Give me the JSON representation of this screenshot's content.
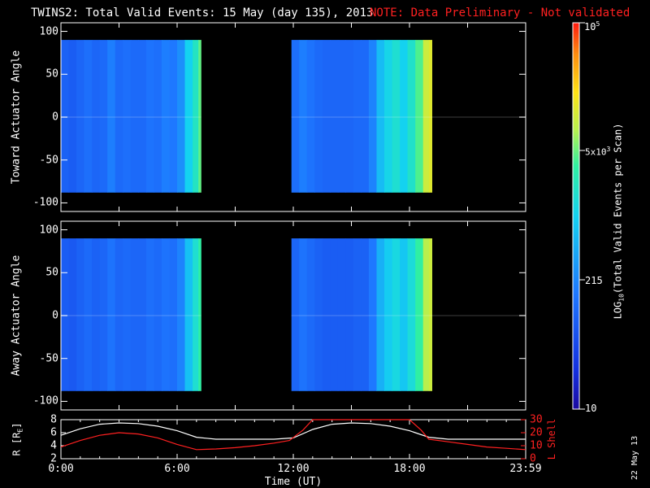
{
  "title": {
    "main": "TWINS2: Total Valid Events: 15 May (day 135), 2013",
    "note": "NOTE: Data Preliminary - Not validated"
  },
  "stamp": "22 May 13",
  "colors": {
    "background": "#000000",
    "axes": "#ffffff",
    "note": "#ff2020",
    "lshell_line": "#ff2020",
    "r_line": "#ffffff"
  },
  "chart_data": [
    {
      "type": "heatmap",
      "panel": "top",
      "ylabel": "Toward Actuator Angle",
      "xlim": [
        0,
        24
      ],
      "ylim": [
        -110,
        110
      ],
      "yticks": [
        100,
        50,
        0,
        -50,
        -100
      ],
      "angle_range": [
        -88,
        90
      ],
      "data_gaps_hours": [
        [
          7.25,
          11.9
        ]
      ],
      "coverage_hours": [
        [
          0,
          7.25
        ],
        [
          11.9,
          19.15
        ]
      ],
      "time_profile_log10_events": [
        [
          0.0,
          1.95
        ],
        [
          0.4,
          1.9
        ],
        [
          0.8,
          2.0
        ],
        [
          1.2,
          2.1
        ],
        [
          1.6,
          2.0
        ],
        [
          2.0,
          2.05
        ],
        [
          2.4,
          2.25
        ],
        [
          2.8,
          2.05
        ],
        [
          3.2,
          2.1
        ],
        [
          3.6,
          2.05
        ],
        [
          4.0,
          2.05
        ],
        [
          4.4,
          2.15
        ],
        [
          4.8,
          2.1
        ],
        [
          5.2,
          2.25
        ],
        [
          5.6,
          2.2
        ],
        [
          6.0,
          2.4
        ],
        [
          6.4,
          3.0
        ],
        [
          6.8,
          3.3
        ],
        [
          7.1,
          3.65
        ],
        [
          11.9,
          2.1
        ],
        [
          12.3,
          2.25
        ],
        [
          12.7,
          2.15
        ],
        [
          13.1,
          2.05
        ],
        [
          13.5,
          2.0
        ],
        [
          13.9,
          2.0
        ],
        [
          14.3,
          2.0
        ],
        [
          14.7,
          2.0
        ],
        [
          15.1,
          2.05
        ],
        [
          15.5,
          2.05
        ],
        [
          15.9,
          2.3
        ],
        [
          16.3,
          2.8
        ],
        [
          16.7,
          3.05
        ],
        [
          17.1,
          3.2
        ],
        [
          17.5,
          3.0
        ],
        [
          17.9,
          3.25
        ],
        [
          18.3,
          3.6
        ],
        [
          18.7,
          4.0
        ],
        [
          19.0,
          4.1
        ]
      ]
    },
    {
      "type": "heatmap",
      "panel": "middle",
      "ylabel": "Away Actuator Angle",
      "xlim": [
        0,
        24
      ],
      "ylim": [
        -110,
        110
      ],
      "yticks": [
        100,
        50,
        0,
        -50,
        -100
      ],
      "angle_range": [
        -88,
        90
      ],
      "data_gaps_hours": [
        [
          7.25,
          11.9
        ]
      ],
      "coverage_hours": [
        [
          0,
          7.25
        ],
        [
          11.9,
          19.15
        ]
      ],
      "time_profile_log10_events": [
        [
          0.0,
          1.9
        ],
        [
          0.4,
          1.85
        ],
        [
          0.8,
          1.95
        ],
        [
          1.2,
          2.05
        ],
        [
          1.6,
          1.95
        ],
        [
          2.0,
          2.0
        ],
        [
          2.4,
          2.15
        ],
        [
          2.8,
          2.0
        ],
        [
          3.2,
          2.05
        ],
        [
          3.6,
          2.0
        ],
        [
          4.0,
          2.0
        ],
        [
          4.4,
          2.1
        ],
        [
          4.8,
          2.05
        ],
        [
          5.2,
          2.15
        ],
        [
          5.6,
          2.1
        ],
        [
          6.0,
          2.3
        ],
        [
          6.4,
          2.85
        ],
        [
          6.8,
          3.2
        ],
        [
          7.1,
          3.5
        ],
        [
          11.9,
          2.0
        ],
        [
          12.3,
          2.15
        ],
        [
          12.7,
          2.05
        ],
        [
          13.1,
          1.95
        ],
        [
          13.5,
          1.9
        ],
        [
          13.9,
          1.9
        ],
        [
          14.3,
          1.9
        ],
        [
          14.7,
          1.9
        ],
        [
          15.1,
          1.95
        ],
        [
          15.5,
          1.95
        ],
        [
          15.9,
          2.2
        ],
        [
          16.3,
          2.7
        ],
        [
          16.7,
          2.95
        ],
        [
          17.1,
          3.1
        ],
        [
          17.5,
          2.9
        ],
        [
          17.9,
          3.15
        ],
        [
          18.3,
          3.5
        ],
        [
          18.7,
          3.9
        ],
        [
          19.0,
          4.0
        ]
      ]
    },
    {
      "type": "line",
      "panel": "bottom",
      "ylabel_left": "R [R",
      "ylabel_left_sub": "E",
      "ylabel_left_close": "]",
      "ylabel_right": "L Shell",
      "xlabel": "Time (UT)",
      "xlim": [
        0,
        24
      ],
      "ylim_left": [
        2,
        8
      ],
      "ylim_right": [
        0,
        30
      ],
      "yticks_left": [
        2,
        4,
        6,
        8
      ],
      "yticks_right": [
        0,
        10,
        20,
        30
      ],
      "xticks": [
        "0:00",
        "6:00",
        "12:00",
        "18:00",
        "23:59"
      ],
      "xtick_values": [
        0,
        6,
        12,
        18,
        24
      ],
      "series": [
        {
          "name": "R",
          "axis": "left",
          "x": [
            0,
            1,
            2,
            3,
            4,
            5,
            6,
            7,
            8,
            9,
            10,
            11,
            12,
            13,
            14,
            15,
            16,
            17,
            18,
            19,
            20,
            21,
            22,
            23,
            24
          ],
          "values": [
            5.6,
            6.6,
            7.3,
            7.5,
            7.4,
            7.0,
            6.3,
            5.3,
            5.0,
            5.0,
            5.0,
            5.0,
            5.2,
            6.5,
            7.3,
            7.5,
            7.4,
            7.0,
            6.3,
            5.3,
            5.0,
            5.0,
            5.0,
            5.0,
            5.0
          ]
        },
        {
          "name": "L Shell",
          "axis": "right",
          "x": [
            0,
            1,
            2,
            3,
            4,
            5,
            6,
            7,
            8,
            9,
            10,
            11,
            11.8,
            12.5,
            13,
            18,
            18.6,
            19,
            20,
            21,
            22,
            23,
            24
          ],
          "values": [
            9,
            14,
            18,
            20,
            19,
            16,
            11,
            7,
            7.5,
            8.5,
            10,
            12,
            14,
            22,
            30,
            30,
            22,
            15,
            13,
            11,
            9,
            8,
            7
          ]
        }
      ]
    }
  ],
  "colorbar": {
    "label": "LOG10(Total Valid Events per Scan)",
    "label_prefix": "LOG",
    "label_sub": "10",
    "label_suffix": "(Total Valid Events per Scan)",
    "scale": "log",
    "range": [
      10,
      100000
    ],
    "tick_top": "10",
    "tick_top_sup": "5",
    "tick_mid": "5x10",
    "tick_mid_sup": "3",
    "tick_low": "215",
    "tick_bottom": "10",
    "tick_values": [
      100000,
      5000,
      215,
      10
    ]
  }
}
